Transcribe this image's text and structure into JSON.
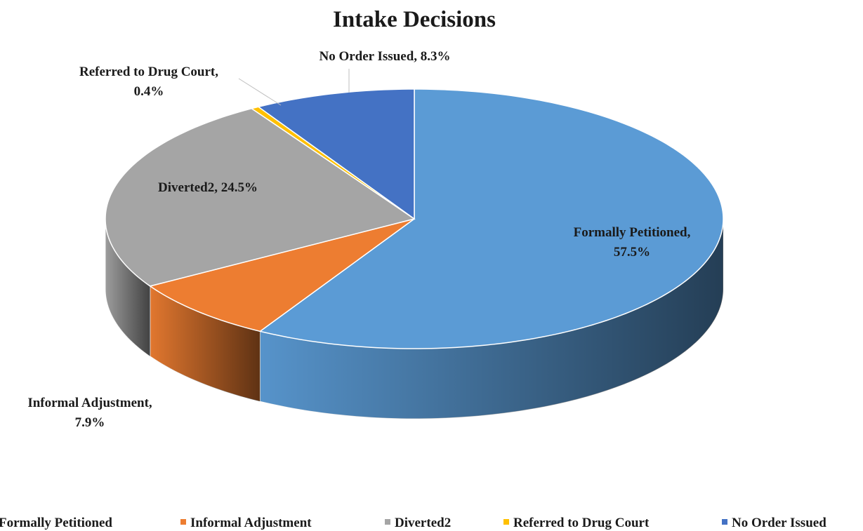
{
  "chart_data": {
    "type": "pie3d",
    "title": "Intake Decisions",
    "categories": [
      "Formally Petitioned",
      "Informal Adjustment",
      "Diverted2",
      "Referred to Drug Court",
      "No Order Issued"
    ],
    "values": [
      57.5,
      7.9,
      24.5,
      0.4,
      8.3
    ],
    "value_labels": [
      [
        "Formally Petitioned,",
        "57.5%"
      ],
      [
        "Informal Adjustment,",
        "7.9%"
      ],
      [
        "Diverted2, 24.5%"
      ],
      [
        "Referred to Drug Court,",
        "0.4%"
      ],
      [
        "No Order Issued, 8.3%"
      ]
    ],
    "colors": [
      "#5b9bd5",
      "#ed7d31",
      "#a5a5a5",
      "#ffc000",
      "#4472c4"
    ],
    "legend": "bottom"
  }
}
